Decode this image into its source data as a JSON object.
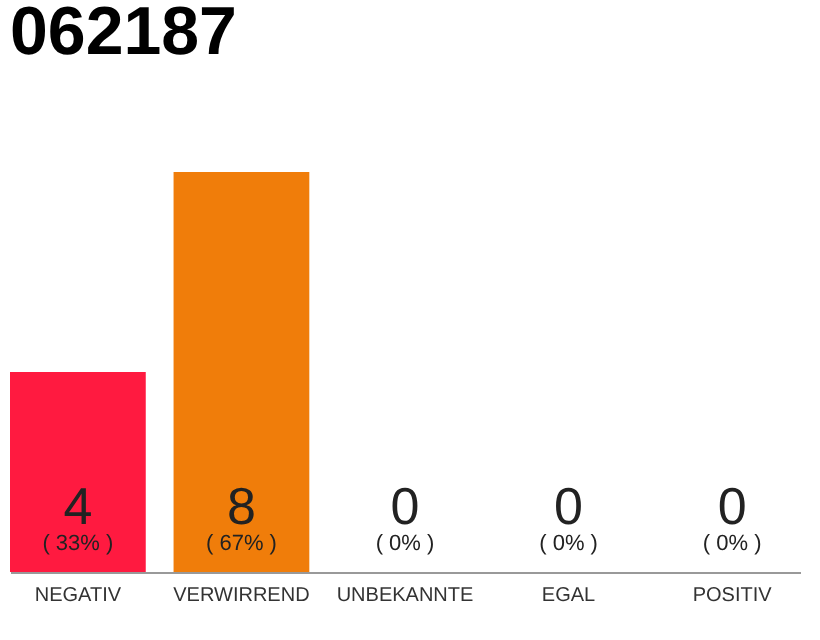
{
  "chart_data": {
    "type": "bar",
    "title": "062187",
    "categories": [
      "NEGATIV",
      "VERWIRREND",
      "UNBEKANNTE",
      "EGAL",
      "POSITIV"
    ],
    "values": [
      4,
      8,
      0,
      0,
      0
    ],
    "colors": [
      "#ff1a40",
      "#f07d0a",
      "#cccccc",
      "#cccccc",
      "#cccccc"
    ],
    "data_labels": true,
    "annotations": [
      "( 33% )",
      "( 67% )",
      "( 0% )",
      "( 0% )",
      "( 0% )"
    ],
    "grid": false
  }
}
